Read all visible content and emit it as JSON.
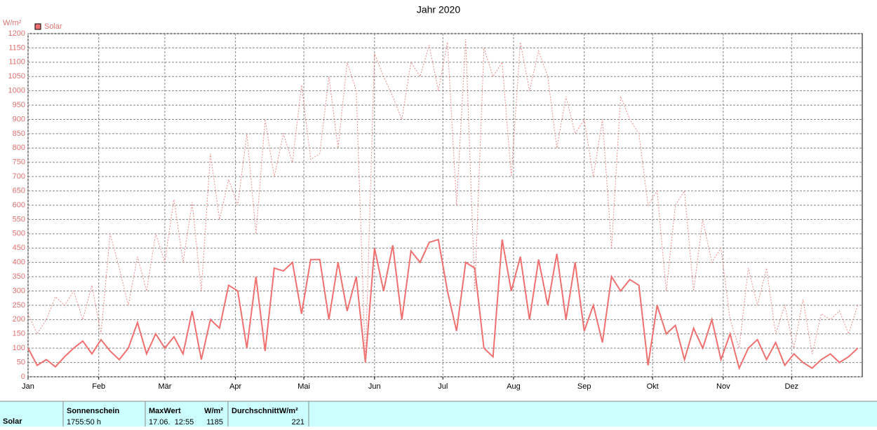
{
  "chart_data": {
    "type": "line",
    "title": "Jahr 2020",
    "y_label": "W/m²",
    "x": [
      0,
      4,
      8,
      12,
      16,
      20,
      24,
      28,
      32,
      36,
      40,
      44,
      48,
      52,
      56,
      60,
      64,
      68,
      72,
      76,
      80,
      84,
      88,
      92,
      96,
      100,
      104,
      108,
      112,
      116,
      120,
      124,
      128,
      132,
      136,
      140,
      144,
      148,
      152,
      156,
      160,
      164,
      168,
      172,
      176,
      180,
      184,
      188,
      192,
      196,
      200,
      204,
      208,
      212,
      216,
      220,
      224,
      228,
      232,
      236,
      240,
      244,
      248,
      252,
      256,
      260,
      264,
      268,
      272,
      276,
      280,
      284,
      288,
      292,
      296,
      300,
      304,
      308,
      312,
      316,
      320,
      324,
      328,
      332,
      336,
      340,
      344,
      348,
      352,
      356,
      360,
      364
    ],
    "series": [
      {
        "name": "Solar",
        "color": "#f07070",
        "style": "solid",
        "values": [
          100,
          40,
          60,
          35,
          70,
          100,
          125,
          80,
          130,
          90,
          60,
          100,
          190,
          80,
          150,
          100,
          140,
          80,
          230,
          60,
          200,
          170,
          320,
          300,
          100,
          350,
          90,
          380,
          370,
          400,
          220,
          410,
          410,
          200,
          400,
          230,
          350,
          50,
          450,
          300,
          460,
          200,
          440,
          400,
          470,
          480,
          300,
          160,
          400,
          380,
          100,
          70,
          480,
          300,
          420,
          200,
          410,
          250,
          430,
          200,
          400,
          160,
          250,
          120,
          350,
          300,
          340,
          320,
          40,
          250,
          150,
          180,
          60,
          170,
          100,
          200,
          60,
          150,
          30,
          100,
          130,
          60,
          120,
          40,
          80,
          50,
          30,
          60,
          80,
          50,
          70,
          100
        ]
      },
      {
        "color": "#f08c8c",
        "style": "dotted",
        "values": [
          220,
          150,
          200,
          280,
          250,
          300,
          200,
          320,
          150,
          500,
          380,
          250,
          420,
          300,
          500,
          400,
          620,
          400,
          610,
          300,
          780,
          550,
          690,
          600,
          850,
          500,
          900,
          700,
          850,
          750,
          1020,
          760,
          780,
          1050,
          800,
          1100,
          1000,
          50,
          1130,
          1050,
          980,
          900,
          1100,
          1050,
          1160,
          1000,
          1170,
          600,
          1180,
          300,
          1150,
          1050,
          1100,
          700,
          1170,
          1000,
          1140,
          1050,
          800,
          980,
          850,
          900,
          700,
          900,
          450,
          980,
          900,
          850,
          600,
          650,
          300,
          600,
          650,
          300,
          550,
          400,
          450,
          200,
          100,
          380,
          250,
          380,
          150,
          250,
          100,
          270,
          80,
          220,
          200,
          230,
          150,
          250
        ]
      }
    ],
    "xlim": [
      0,
      366
    ],
    "xticks": [
      {
        "value": 0,
        "label": "Jan"
      },
      {
        "value": 31,
        "label": "Feb"
      },
      {
        "value": 60,
        "label": "Mär"
      },
      {
        "value": 91,
        "label": "Apr"
      },
      {
        "value": 121,
        "label": "Mai"
      },
      {
        "value": 152,
        "label": "Jun"
      },
      {
        "value": 182,
        "label": "Jul"
      },
      {
        "value": 213,
        "label": "Aug"
      },
      {
        "value": 244,
        "label": "Sep"
      },
      {
        "value": 274,
        "label": "Okt"
      },
      {
        "value": 305,
        "label": "Nov"
      },
      {
        "value": 335,
        "label": "Dez"
      }
    ],
    "ylim": [
      0,
      1200
    ],
    "yticks": [
      0,
      50,
      100,
      150,
      200,
      250,
      300,
      350,
      400,
      450,
      500,
      550,
      600,
      650,
      700,
      750,
      800,
      850,
      900,
      950,
      1000,
      1050,
      1100,
      1150,
      1200
    ],
    "grid": true,
    "legend": "top-left"
  },
  "table": {
    "row_label": "Solar",
    "cells": [
      [
        "Sonnenschein",
        "1755:50 h"
      ],
      [
        "MaxWert",
        "W/m²",
        "17.06.  12:55",
        "1185"
      ],
      [
        "DurchschnittW/m²",
        "221"
      ]
    ]
  }
}
